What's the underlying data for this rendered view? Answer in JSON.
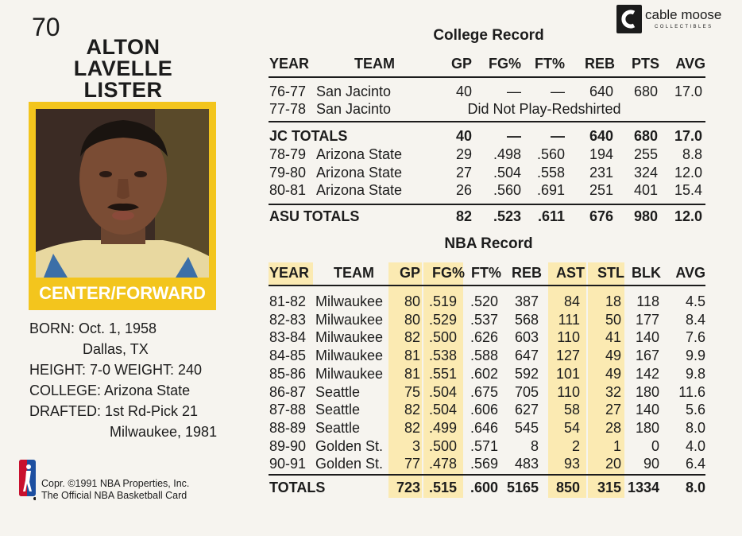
{
  "card_number": "70",
  "player": {
    "name_lines": [
      "ALTON",
      "LAVELLE",
      "LISTER"
    ],
    "position": "CENTER/FORWARD"
  },
  "bio": {
    "born": "BORN: Oct. 1, 1958",
    "birthplace": "Dallas, TX",
    "height_weight": "HEIGHT: 7-0  WEIGHT: 240",
    "college": "COLLEGE: Arizona State",
    "drafted": "DRAFTED: 1st Rd-Pick 21",
    "drafted_team": "Milwaukee, 1981"
  },
  "copyright": [
    "Copr. ©1991 NBA Properties, Inc.",
    "The Official NBA Basketball Card"
  ],
  "brand": {
    "name": "cable moose",
    "sub": "COLLECTIBLES",
    "mark": "c"
  },
  "colors": {
    "accent_yellow": "#f3c51d",
    "highlight": "#fbeab2"
  },
  "college_record": {
    "title": "College Record",
    "headers": [
      "YEAR",
      "TEAM",
      "GP",
      "FG%",
      "FT%",
      "REB",
      "PTS",
      "AVG"
    ],
    "rows": [
      {
        "year": "76-77",
        "team": "San Jacinto",
        "gp": "40",
        "fg": "—",
        "ft": "—",
        "reb": "640",
        "pts": "680",
        "avg": "17.0"
      },
      {
        "year": "77-78",
        "team": "San Jacinto",
        "note": "Did Not Play-Redshirted"
      }
    ],
    "jc_totals": {
      "label": "JC TOTALS",
      "gp": "40",
      "fg": "—",
      "ft": "—",
      "reb": "640",
      "pts": "680",
      "avg": "17.0"
    },
    "asu_rows": [
      {
        "year": "78-79",
        "team": "Arizona State",
        "gp": "29",
        "fg": ".498",
        "ft": ".560",
        "reb": "194",
        "pts": "255",
        "avg": "8.8"
      },
      {
        "year": "79-80",
        "team": "Arizona State",
        "gp": "27",
        "fg": ".504",
        "ft": ".558",
        "reb": "231",
        "pts": "324",
        "avg": "12.0"
      },
      {
        "year": "80-81",
        "team": "Arizona State",
        "gp": "26",
        "fg": ".560",
        "ft": ".691",
        "reb": "251",
        "pts": "401",
        "avg": "15.4"
      }
    ],
    "asu_totals": {
      "label": "ASU TOTALS",
      "gp": "82",
      "fg": ".523",
      "ft": ".611",
      "reb": "676",
      "pts": "980",
      "avg": "12.0"
    }
  },
  "nba_record": {
    "title": "NBA Record",
    "headers": [
      "YEAR",
      "TEAM",
      "GP",
      "FG%",
      "FT%",
      "REB",
      "AST",
      "STL",
      "BLK",
      "AVG"
    ],
    "rows": [
      {
        "year": "81-82",
        "team": "Milwaukee",
        "gp": "80",
        "fg": ".519",
        "ft": ".520",
        "reb": "387",
        "ast": "84",
        "stl": "18",
        "blk": "118",
        "avg": "4.5"
      },
      {
        "year": "82-83",
        "team": "Milwaukee",
        "gp": "80",
        "fg": ".529",
        "ft": ".537",
        "reb": "568",
        "ast": "111",
        "stl": "50",
        "blk": "177",
        "avg": "8.4"
      },
      {
        "year": "83-84",
        "team": "Milwaukee",
        "gp": "82",
        "fg": ".500",
        "ft": ".626",
        "reb": "603",
        "ast": "110",
        "stl": "41",
        "blk": "140",
        "avg": "7.6"
      },
      {
        "year": "84-85",
        "team": "Milwaukee",
        "gp": "81",
        "fg": ".538",
        "ft": ".588",
        "reb": "647",
        "ast": "127",
        "stl": "49",
        "blk": "167",
        "avg": "9.9"
      },
      {
        "year": "85-86",
        "team": "Milwaukee",
        "gp": "81",
        "fg": ".551",
        "ft": ".602",
        "reb": "592",
        "ast": "101",
        "stl": "49",
        "blk": "142",
        "avg": "9.8"
      },
      {
        "year": "86-87",
        "team": "Seattle",
        "gp": "75",
        "fg": ".504",
        "ft": ".675",
        "reb": "705",
        "ast": "110",
        "stl": "32",
        "blk": "180",
        "avg": "11.6"
      },
      {
        "year": "87-88",
        "team": "Seattle",
        "gp": "82",
        "fg": ".504",
        "ft": ".606",
        "reb": "627",
        "ast": "58",
        "stl": "27",
        "blk": "140",
        "avg": "5.6"
      },
      {
        "year": "88-89",
        "team": "Seattle",
        "gp": "82",
        "fg": ".499",
        "ft": ".646",
        "reb": "545",
        "ast": "54",
        "stl": "28",
        "blk": "180",
        "avg": "8.0"
      },
      {
        "year": "89-90",
        "team": "Golden St.",
        "gp": "3",
        "fg": ".500",
        "ft": ".571",
        "reb": "8",
        "ast": "2",
        "stl": "1",
        "blk": "0",
        "avg": "4.0"
      },
      {
        "year": "90-91",
        "team": "Golden St.",
        "gp": "77",
        "fg": ".478",
        "ft": ".569",
        "reb": "483",
        "ast": "93",
        "stl": "20",
        "blk": "90",
        "avg": "6.4"
      }
    ],
    "totals": {
      "label": "TOTALS",
      "gp": "723",
      "fg": ".515",
      "ft": ".600",
      "reb": "5165",
      "ast": "850",
      "stl": "315",
      "blk": "1334",
      "avg": "8.0"
    }
  }
}
